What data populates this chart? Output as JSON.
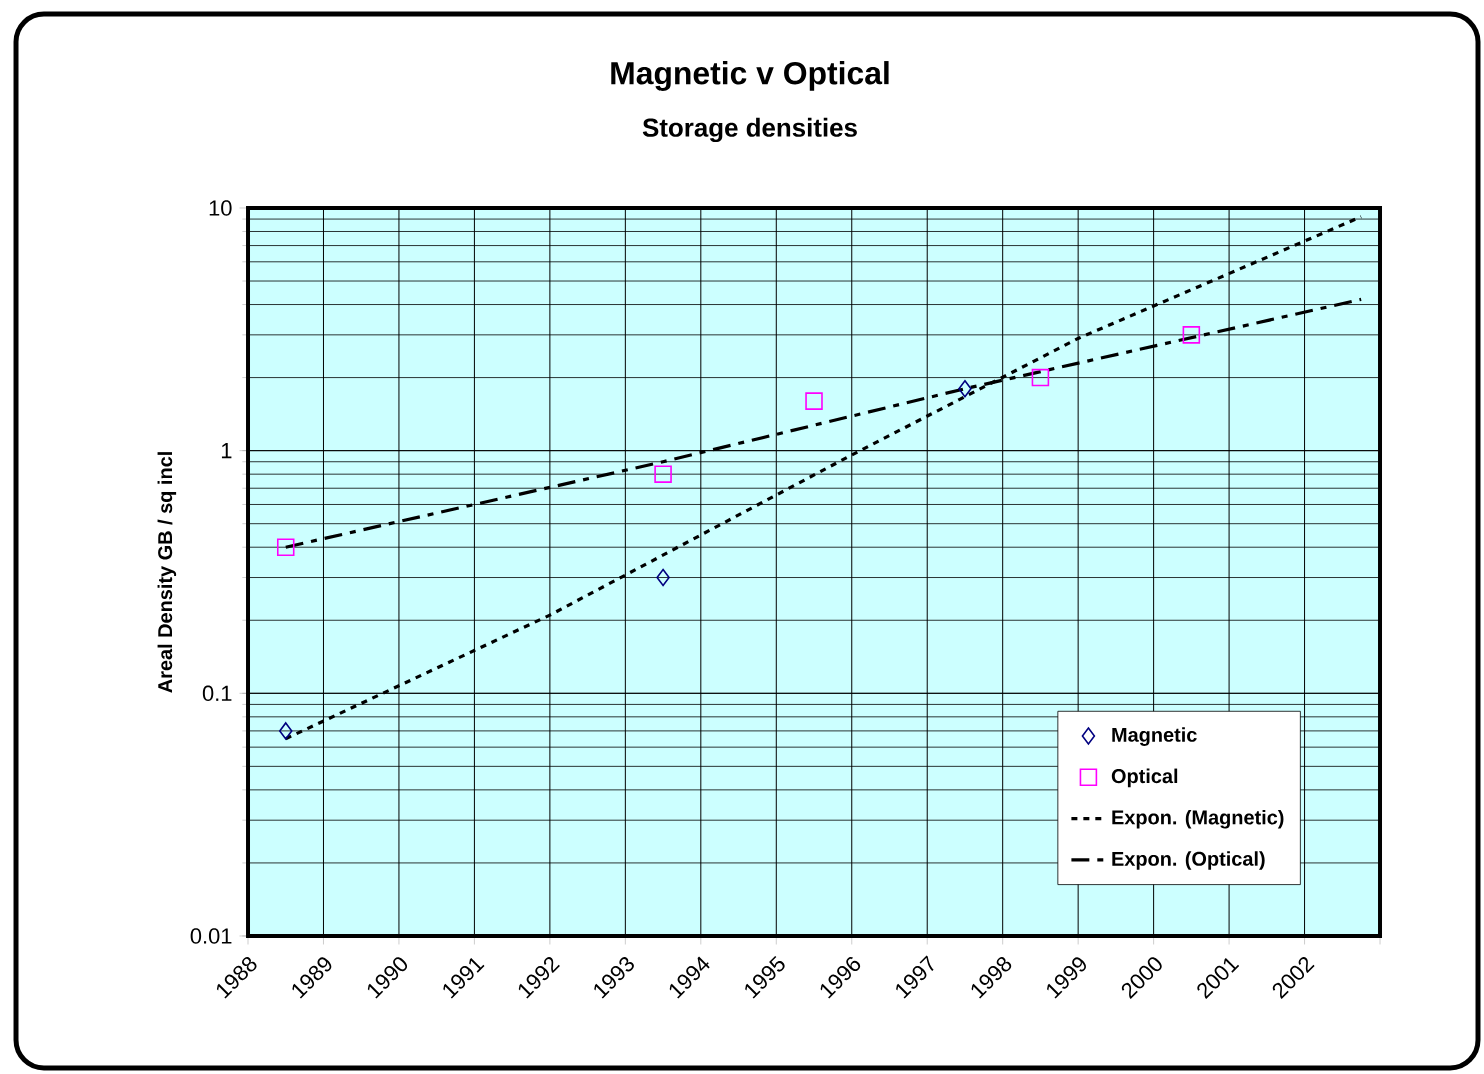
{
  "chart_data": {
    "type": "scatter",
    "title": "Magnetic v Optical",
    "subtitle": "Storage densities",
    "ylabel": "Areal Density GB / sq incl",
    "xlim": [
      1988,
      2003
    ],
    "xticks": [
      1988,
      1989,
      1990,
      1991,
      1992,
      1993,
      1994,
      1995,
      1996,
      1997,
      1998,
      1999,
      2000,
      2001,
      2002,
      {
        "value": 2003,
        "label": null
      }
    ],
    "ylim": [
      0.01,
      10
    ],
    "yticks": [
      0.01,
      0.1,
      1,
      10
    ],
    "log": "y",
    "grid": true,
    "legend": "bottom right",
    "series": [
      {
        "name": "Magnetic",
        "marker": "diamond",
        "color": "#000080",
        "x": [
          1988.5,
          1993.5,
          1997.5
        ],
        "values": [
          0.07,
          0.3,
          1.8
        ]
      },
      {
        "name": "Optical",
        "marker": "square",
        "color": "#ff00ff",
        "x": [
          1988.5,
          1993.5,
          1995.5,
          1998.5,
          2000.5
        ],
        "values": [
          0.4,
          0.8,
          1.6,
          2.0,
          3.0
        ]
      },
      {
        "name": "Expon. (Magnetic)",
        "type": "line",
        "line_style": "dotted",
        "color": "#000000",
        "x": [
          1988.5,
          1992,
          1996,
          1999,
          2002.75
        ],
        "values": [
          0.065,
          0.21,
          0.96,
          2.9,
          9.2
        ]
      },
      {
        "name": "Expon. (Optical)",
        "type": "line",
        "line_style": "dashed",
        "color": "#000000",
        "x": [
          1988.5,
          1993.5,
          1997.5,
          2002.75
        ],
        "values": [
          0.4,
          0.9,
          1.8,
          4.2
        ]
      }
    ]
  }
}
